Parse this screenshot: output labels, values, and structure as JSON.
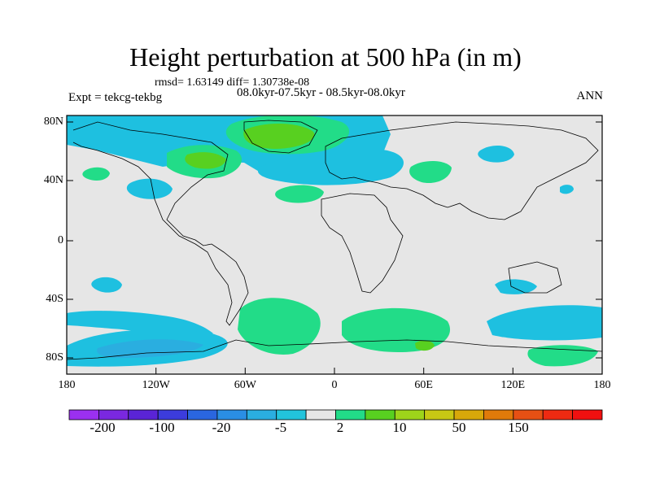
{
  "title": "Height perturbation at 500 hPa (in m)",
  "stats": "rmsd= 1.63149 diff= 1.30738e-08",
  "experiment": "Expt = tekcg-tekbg",
  "period": "08.0kyr-07.5kyr - 08.5kyr-08.0kyr",
  "season": "ANN",
  "lat_labels": [
    "80N",
    "40N",
    "0",
    "40S",
    "80S"
  ],
  "lon_labels": [
    "180",
    "120W",
    "60W",
    "0",
    "60E",
    "120E",
    "180"
  ],
  "colorbar": {
    "colors": [
      "#9b30f0",
      "#7a28e0",
      "#5a24d6",
      "#3c3cdc",
      "#2a66e0",
      "#2a8ee4",
      "#2aaee0",
      "#22c4dc",
      "#e6e6e6",
      "#22dc88",
      "#58d020",
      "#9ed41a",
      "#c8c814",
      "#d8a80a",
      "#e07a0a",
      "#e65014",
      "#ee2a12",
      "#f01010"
    ],
    "labels": [
      "-200",
      "-100",
      "-20",
      "-5",
      "2",
      "10",
      "50",
      "150"
    ]
  },
  "field_colors": {
    "background": "#e6e6e6",
    "light_blue": "#1ec0e0",
    "mid_blue": "#2aaee0",
    "light_green": "#22dc88",
    "green": "#58d020"
  }
}
